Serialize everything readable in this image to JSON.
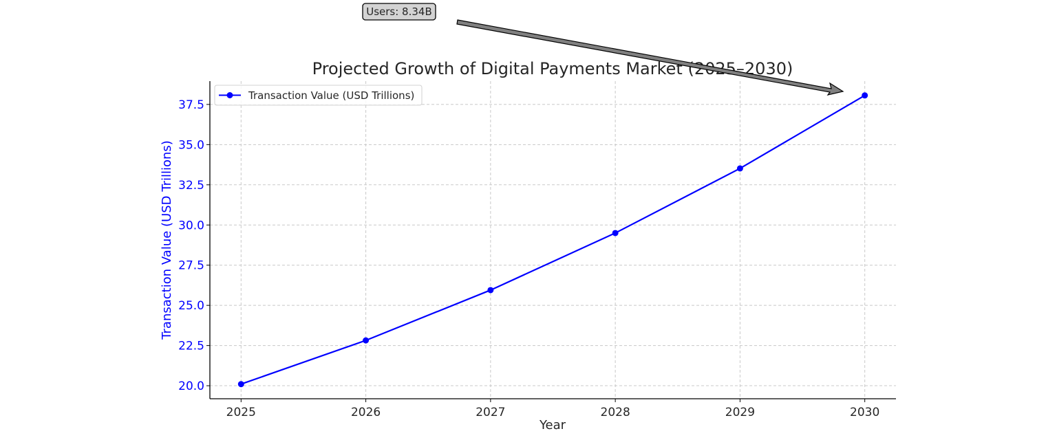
{
  "chart_data": {
    "type": "line",
    "title": "Projected Growth of Digital Payments Market (2025–2030)",
    "xlabel": "Year",
    "ylabel": "Transaction Value (USD Trillions)",
    "x": [
      2025,
      2026,
      2027,
      2028,
      2029,
      2030
    ],
    "series": [
      {
        "name": "Transaction Value (USD Trillions)",
        "values": [
          20.1,
          22.82,
          25.95,
          29.5,
          33.52,
          38.06
        ],
        "color": "#0000ff",
        "marker": "circle"
      }
    ],
    "xticks": [
      "2025",
      "2026",
      "2027",
      "2028",
      "2029",
      "2030"
    ],
    "yticks": [
      "20.0",
      "22.5",
      "25.0",
      "27.5",
      "30.0",
      "32.5",
      "35.0",
      "37.5"
    ],
    "xlim": [
      2024.75,
      2030.25
    ],
    "ylim": [
      19.19,
      38.95
    ],
    "grid": true,
    "legend_placement": "upper-left",
    "ylabel_color": "#0000ff",
    "annotation": {
      "text": "Users: 8.34B",
      "points_to_year": 2030,
      "arrow_color": "#808080"
    }
  }
}
